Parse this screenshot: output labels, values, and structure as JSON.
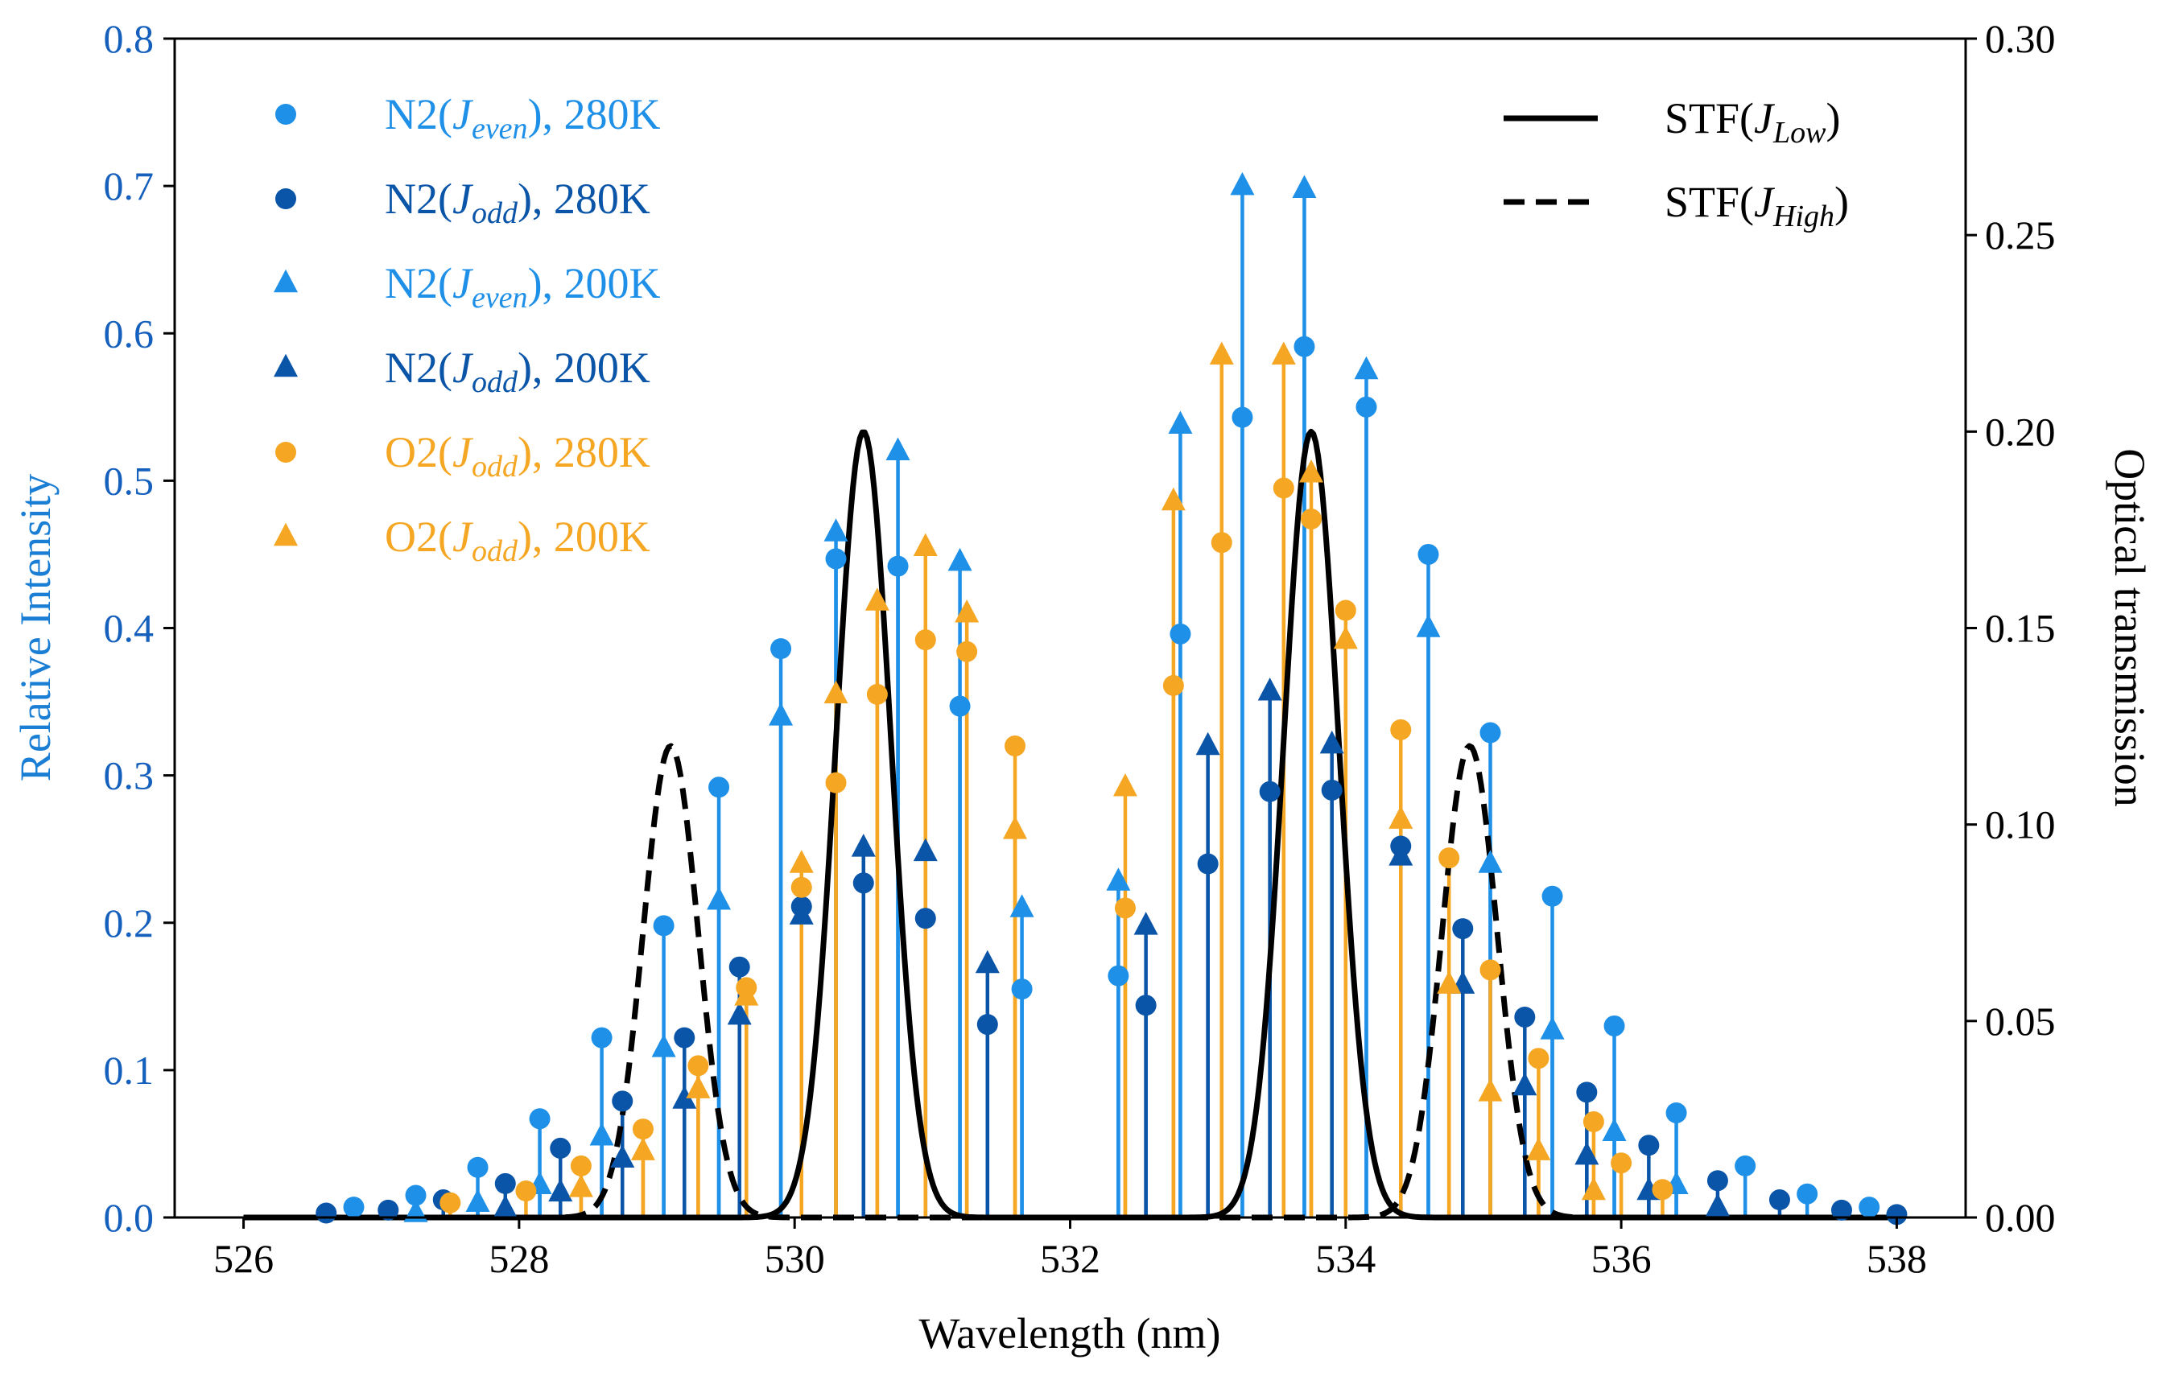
{
  "chart_data": {
    "type": "scatter",
    "xlabel": "Wavelength (nm)",
    "ylabel_left": "Relative Intensity",
    "ylabel_right": "Optical transmission",
    "xlim": [
      525.5,
      538.5
    ],
    "ylim_left": [
      0,
      0.8
    ],
    "ylim_right": [
      0,
      0.3
    ],
    "xticks": [
      526,
      528,
      530,
      532,
      534,
      536,
      538
    ],
    "xtick_labels": [
      "526",
      "528",
      "530",
      "532",
      "534",
      "536",
      "538"
    ],
    "yticks_left": [
      0,
      0.1,
      0.2,
      0.3,
      0.4,
      0.5,
      0.6,
      0.7,
      0.8
    ],
    "ytick_labels_left": [
      "0.0",
      "0.1",
      "0.2",
      "0.3",
      "0.4",
      "0.5",
      "0.6",
      "0.7",
      "0.8"
    ],
    "yticks_right": [
      0,
      0.05,
      0.1,
      0.15,
      0.2,
      0.25,
      0.3
    ],
    "ytick_labels_right": [
      "0.00",
      "0.05",
      "0.10",
      "0.15",
      "0.20",
      "0.25",
      "0.30"
    ],
    "colors": {
      "n2_even": "#1e90e8",
      "n2_odd": "#0a55a8",
      "o2": "#f5a623",
      "stf": "#000000",
      "left_axis": "#1560bd"
    },
    "legend_placement": "top-left",
    "series": [
      {
        "name": "N2(Jeven), 280K",
        "main": "N2(",
        "sub": "even",
        "tail": "), 280K",
        "marker": "circle",
        "color": "#1e90e8",
        "x": [
          526.8,
          527.25,
          527.7,
          528.15,
          528.6,
          529.05,
          529.45,
          529.9,
          530.3,
          530.75,
          531.2,
          531.65,
          532.35,
          532.8,
          533.25,
          533.7,
          534.15,
          534.6,
          535.05,
          535.5,
          535.95,
          536.4,
          536.9,
          537.35,
          537.8
        ],
        "y": [
          0.007,
          0.015,
          0.034,
          0.067,
          0.122,
          0.198,
          0.292,
          0.386,
          0.447,
          0.442,
          0.347,
          0.155,
          0.164,
          0.396,
          0.543,
          0.591,
          0.55,
          0.45,
          0.329,
          0.218,
          0.13,
          0.071,
          0.035,
          0.016,
          0.007
        ]
      },
      {
        "name": "N2(Jodd), 280K",
        "main": "N2(",
        "sub": "odd",
        "tail": "), 280K",
        "marker": "circle",
        "color": "#0a55a8",
        "x": [
          526.6,
          527.05,
          527.45,
          527.9,
          528.3,
          528.75,
          529.2,
          529.6,
          530.05,
          530.5,
          530.95,
          531.4,
          532.55,
          533.0,
          533.45,
          533.9,
          534.4,
          534.85,
          535.3,
          535.75,
          536.2,
          536.7,
          537.15,
          537.6,
          538.0
        ],
        "y": [
          0.003,
          0.005,
          0.012,
          0.023,
          0.047,
          0.079,
          0.122,
          0.17,
          0.211,
          0.227,
          0.203,
          0.131,
          0.144,
          0.24,
          0.289,
          0.29,
          0.252,
          0.196,
          0.136,
          0.085,
          0.049,
          0.025,
          0.012,
          0.005,
          0.002
        ]
      },
      {
        "name": "N2(Jeven), 200K",
        "main": "N2(",
        "sub": "even",
        "tail": "), 200K",
        "marker": "triangle",
        "color": "#1e90e8",
        "x": [
          527.25,
          527.7,
          528.15,
          528.6,
          529.05,
          529.45,
          529.9,
          530.3,
          530.75,
          531.2,
          531.65,
          532.35,
          532.8,
          533.25,
          533.7,
          534.15,
          534.6,
          535.05,
          535.5,
          535.95,
          536.4
        ],
        "y": [
          0.003,
          0.01,
          0.022,
          0.055,
          0.115,
          0.215,
          0.34,
          0.465,
          0.52,
          0.445,
          0.21,
          0.228,
          0.538,
          0.7,
          0.698,
          0.575,
          0.4,
          0.24,
          0.127,
          0.058,
          0.022
        ]
      },
      {
        "name": "N2(Jodd), 200K",
        "main": "N2(",
        "sub": "odd",
        "tail": "), 200K",
        "marker": "triangle",
        "color": "#0a55a8",
        "x": [
          527.9,
          528.3,
          528.75,
          529.2,
          529.6,
          530.05,
          530.5,
          530.95,
          531.4,
          532.55,
          533.0,
          533.45,
          533.9,
          534.4,
          534.85,
          535.3,
          535.75,
          536.2,
          536.7
        ],
        "y": [
          0.006,
          0.017,
          0.04,
          0.08,
          0.137,
          0.205,
          0.251,
          0.248,
          0.172,
          0.198,
          0.32,
          0.357,
          0.321,
          0.245,
          0.158,
          0.089,
          0.042,
          0.018,
          0.007
        ]
      },
      {
        "name": "O2(Jodd), 280K",
        "main": "O2(",
        "sub": "odd",
        "tail": "), 280K",
        "marker": "circle",
        "color": "#f5a623",
        "x": [
          527.5,
          528.05,
          528.45,
          528.9,
          529.3,
          529.65,
          530.05,
          530.3,
          530.6,
          530.95,
          531.25,
          531.6,
          532.4,
          532.75,
          533.1,
          533.55,
          533.75,
          534.0,
          534.4,
          534.75,
          535.05,
          535.4,
          535.8,
          536.0,
          536.3
        ],
        "y": [
          0.01,
          0.018,
          0.035,
          0.06,
          0.103,
          0.156,
          0.224,
          0.295,
          0.355,
          0.392,
          0.384,
          0.32,
          0.21,
          0.361,
          0.458,
          0.495,
          0.474,
          0.412,
          0.331,
          0.244,
          0.168,
          0.108,
          0.065,
          0.037,
          0.019
        ]
      },
      {
        "name": "O2(Jodd), 200K",
        "main": "O2(",
        "sub": "odd",
        "tail": "), 200K",
        "marker": "triangle",
        "color": "#f5a623",
        "x": [
          528.45,
          528.9,
          529.3,
          529.65,
          530.05,
          530.3,
          530.6,
          530.95,
          531.25,
          531.6,
          532.4,
          532.75,
          533.1,
          533.55,
          533.75,
          534.0,
          534.4,
          534.75,
          535.05,
          535.4,
          535.8
        ],
        "y": [
          0.02,
          0.045,
          0.087,
          0.15,
          0.24,
          0.355,
          0.418,
          0.455,
          0.41,
          0.263,
          0.292,
          0.486,
          0.585,
          0.585,
          0.505,
          0.392,
          0.27,
          0.158,
          0.085,
          0.045,
          0.018
        ]
      }
    ],
    "lines": [
      {
        "name": "STF(JLow)",
        "main": "STF(",
        "sub": "Low",
        "tail": ")",
        "style": "solid",
        "color": "#000000",
        "peaks": [
          {
            "center": 530.5,
            "amplitude": 0.2,
            "sigma": 0.2
          },
          {
            "center": 533.75,
            "amplitude": 0.2,
            "sigma": 0.2
          }
        ]
      },
      {
        "name": "STF(JHigh)",
        "main": "STF(",
        "sub": "High",
        "tail": ")",
        "style": "dashed",
        "color": "#000000",
        "peaks": [
          {
            "center": 529.1,
            "amplitude": 0.12,
            "sigma": 0.2
          },
          {
            "center": 534.9,
            "amplitude": 0.12,
            "sigma": 0.2
          }
        ]
      }
    ],
    "stf_range": [
      526.0,
      538.0
    ],
    "legend_italic_letter": "J"
  }
}
